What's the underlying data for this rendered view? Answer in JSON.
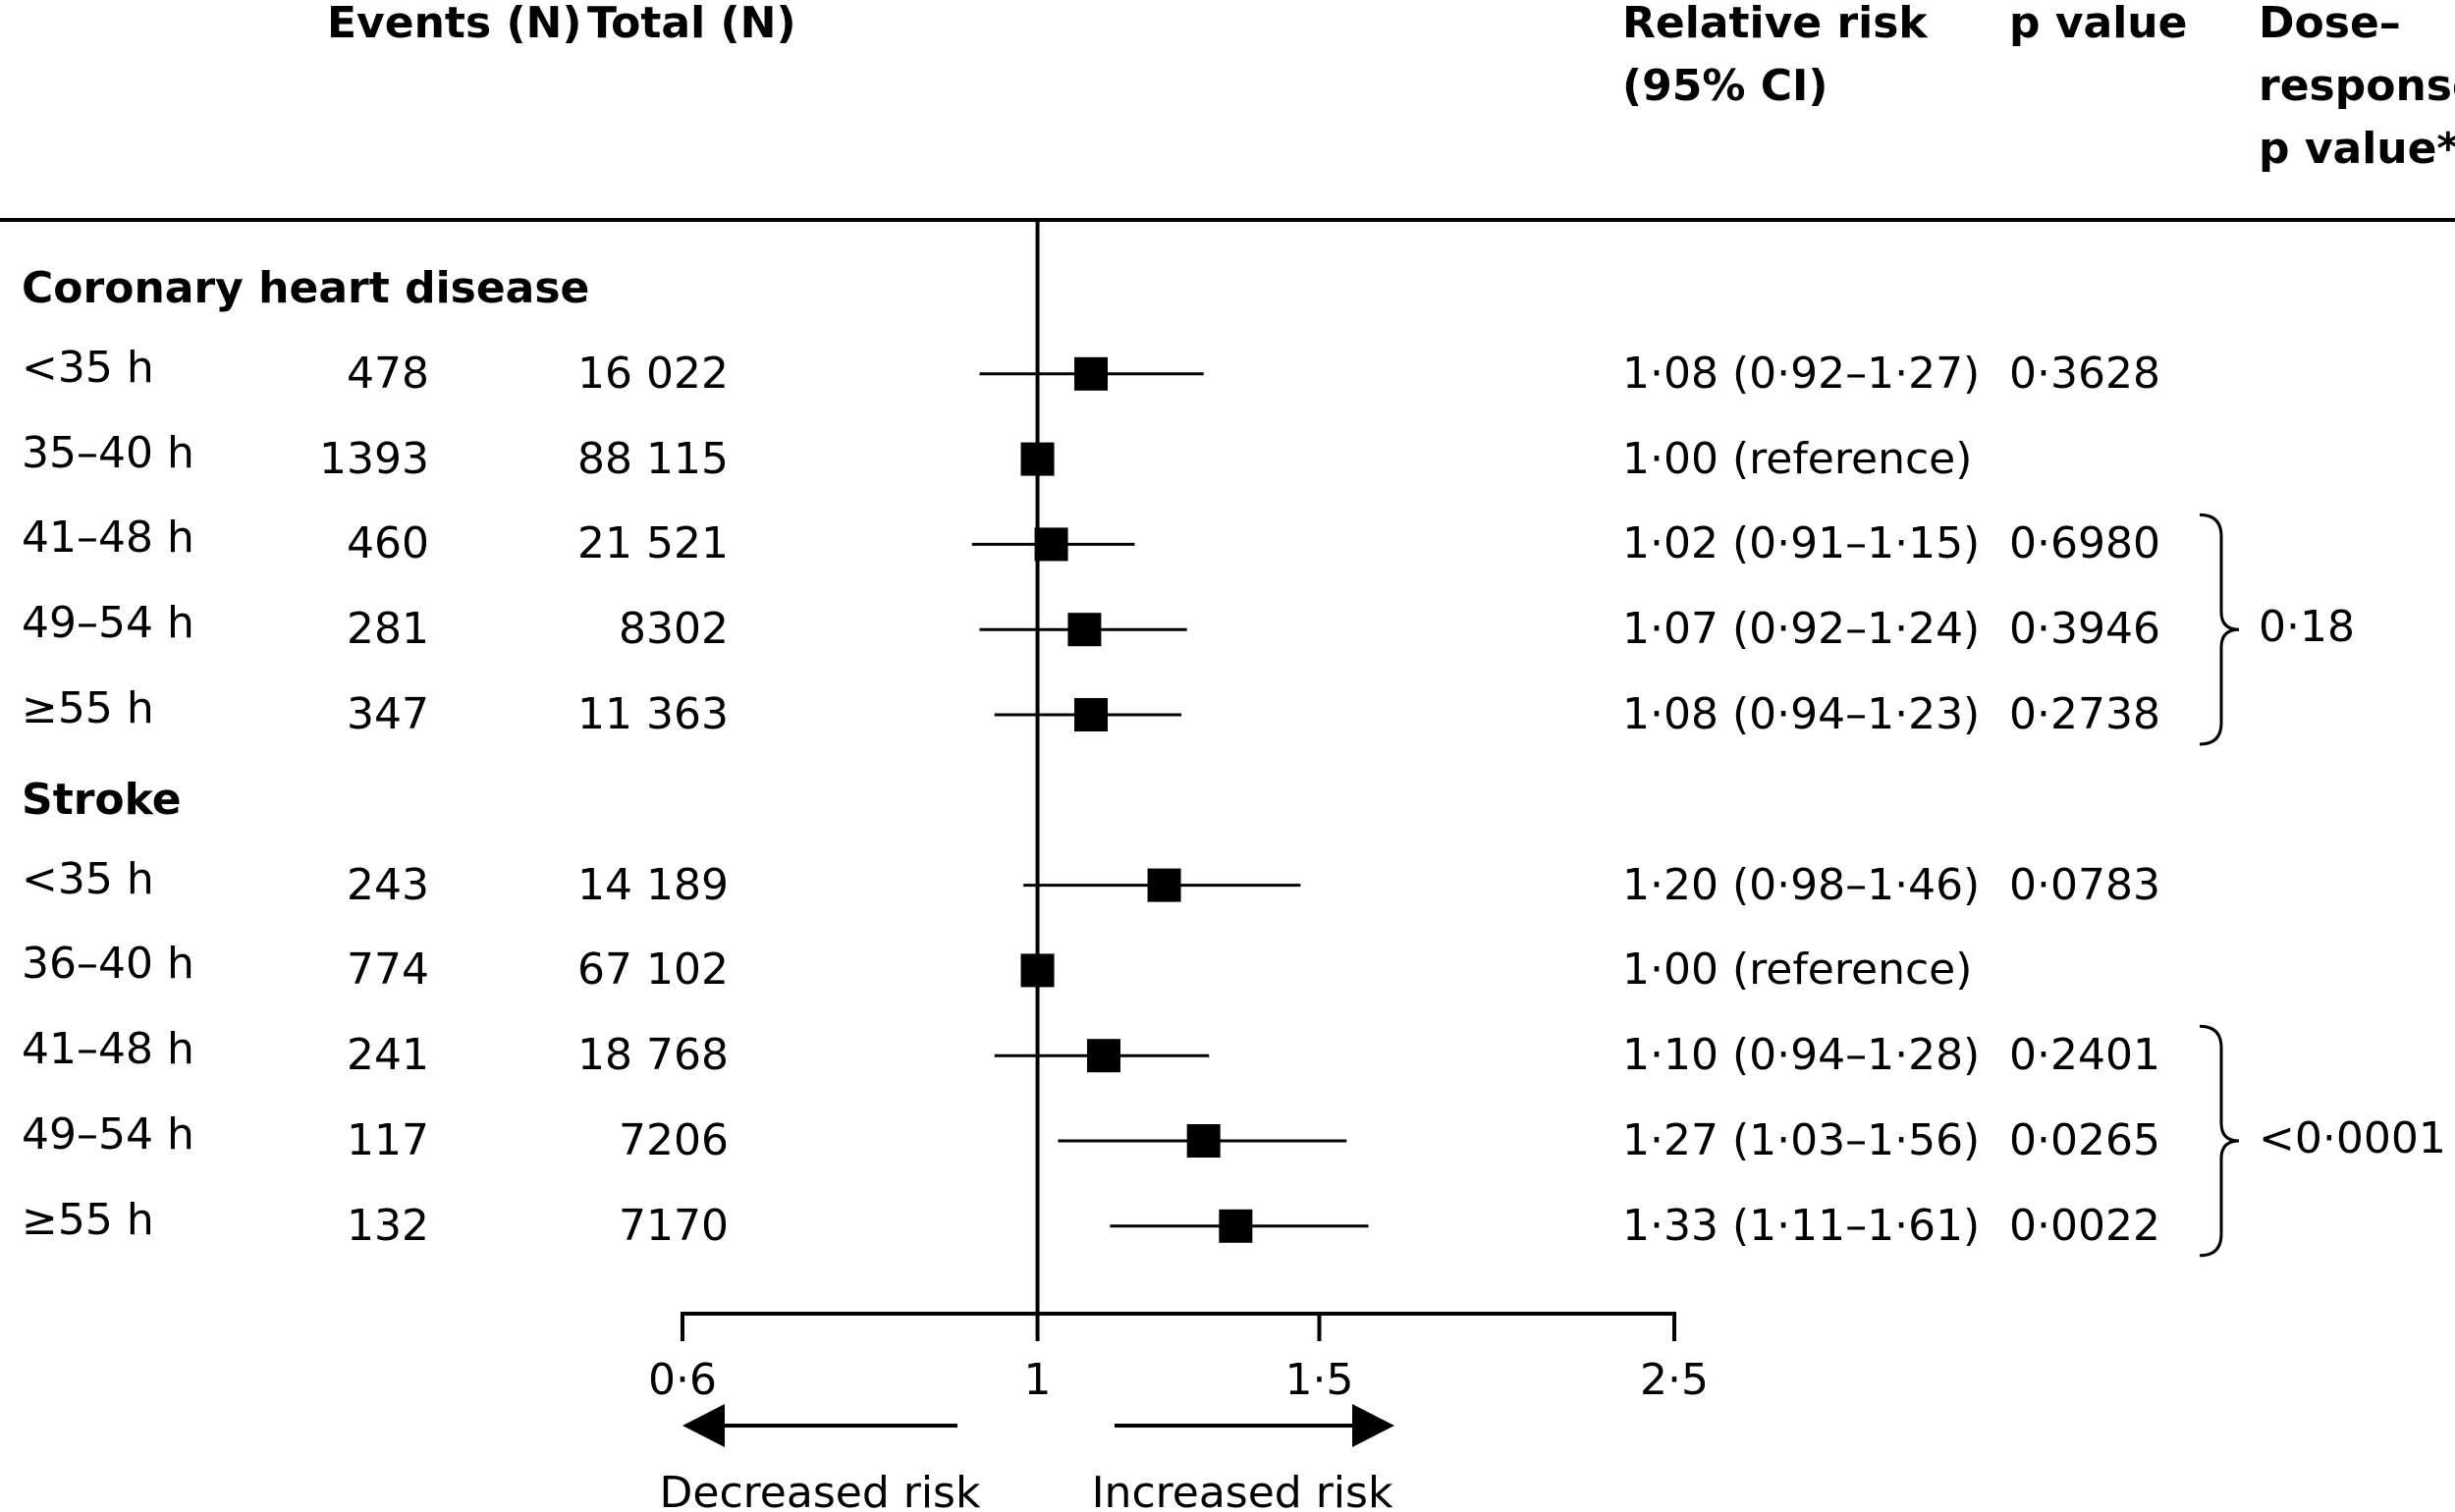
{
  "headers": {
    "events": "Events (N)",
    "total": "Total (N)",
    "rr_line1": "Relative risk",
    "rr_line2": "(95% CI)",
    "p": "p value",
    "dose_line1": "Dose–",
    "dose_line2": "response",
    "dose_line3": "p value*"
  },
  "sections": [
    {
      "title": "Coronary heart disease",
      "dose_p": "0·18",
      "rows": [
        {
          "label": "<35 h",
          "events": "478",
          "total": "16 022",
          "rr_text": "1·08 (0·92–1·27)",
          "p": "0·3628"
        },
        {
          "label": "35–40 h",
          "events": "1393",
          "total": "88 115",
          "rr_text": "1·00 (reference)",
          "p": ""
        },
        {
          "label": "41–48 h",
          "events": "460",
          "total": "21 521",
          "rr_text": "1·02 (0·91–1·15)",
          "p": "0·6980"
        },
        {
          "label": "49–54 h",
          "events": "281",
          "total": "8302",
          "rr_text": "1·07 (0·92–1·24)",
          "p": "0·3946"
        },
        {
          "label": "≥55 h",
          "events": "347",
          "total": "11 363",
          "rr_text": "1·08 (0·94–1·23)",
          "p": "0·2738"
        }
      ]
    },
    {
      "title": "Stroke",
      "dose_p": "<0·0001",
      "rows": [
        {
          "label": "<35 h",
          "events": "243",
          "total": "14 189",
          "rr_text": "1·20 (0·98–1·46)",
          "p": "0·0783"
        },
        {
          "label": "36–40 h",
          "events": "774",
          "total": "67 102",
          "rr_text": "1·00 (reference)",
          "p": ""
        },
        {
          "label": "41–48 h",
          "events": "241",
          "total": "18 768",
          "rr_text": "1·10 (0·94–1·28)",
          "p": "0·2401"
        },
        {
          "label": "49–54 h",
          "events": "117",
          "total": "7206",
          "rr_text": "1·27 (1·03–1·56)",
          "p": "0·0265"
        },
        {
          "label": "≥55 h",
          "events": "132",
          "total": "7170",
          "rr_text": "1·33 (1·11–1·61)",
          "p": "0·0022"
        }
      ]
    }
  ],
  "axis": {
    "ticks": [
      {
        "value": 0.6,
        "label": "0·6"
      },
      {
        "value": 1,
        "label": "1"
      },
      {
        "value": 1.5,
        "label": "1·5"
      },
      {
        "value": 2.5,
        "label": "2·5"
      }
    ],
    "decreased_label": "Decreased risk",
    "increased_label": "Increased risk"
  },
  "chart_data": {
    "type": "forest",
    "scale": "log",
    "xlim": [
      0.6,
      2.5
    ],
    "reference_line": 1,
    "series": [
      {
        "name": "Coronary heart disease",
        "categories": [
          "<35 h",
          "35–40 h",
          "41–48 h",
          "49–54 h",
          "≥55 h"
        ],
        "estimate": [
          1.08,
          1.0,
          1.02,
          1.07,
          1.08
        ],
        "lower": [
          0.92,
          null,
          0.91,
          0.92,
          0.94
        ],
        "upper": [
          1.27,
          null,
          1.15,
          1.24,
          1.23
        ]
      },
      {
        "name": "Stroke",
        "categories": [
          "<35 h",
          "36–40 h",
          "41–48 h",
          "49–54 h",
          "≥55 h"
        ],
        "estimate": [
          1.2,
          1.0,
          1.1,
          1.27,
          1.33
        ],
        "lower": [
          0.98,
          null,
          0.94,
          1.03,
          1.11
        ],
        "upper": [
          1.46,
          null,
          1.28,
          1.56,
          1.61
        ]
      }
    ]
  }
}
